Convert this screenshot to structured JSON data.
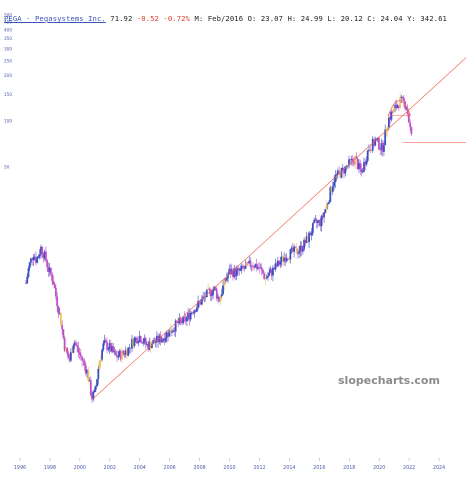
{
  "header": {
    "symbol_name": "PEGA - Pegasystems Inc.",
    "last": "71.92",
    "change": "-0.52",
    "change_pct": "-0.72%",
    "period": "M: Feb/2016",
    "open_label": "O:",
    "open": "23.07",
    "high_label": "H:",
    "high": "24.99",
    "low_label": "L:",
    "low": "20.12",
    "close_label": "C:",
    "close": "24.04",
    "volume_label": "Y:",
    "volume": "342.61"
  },
  "watermark": "slopecharts.com",
  "colors": {
    "up": "#3a4fc0",
    "down": "#c050c8",
    "highlight": "#f2c25a",
    "trendline": "#f06a55",
    "axis_text": "#4a5aa8"
  },
  "chart_data": {
    "type": "line",
    "title": "PEGA - Pegasystems Inc.",
    "y_scale": "log",
    "y_ticks": [
      "500",
      "450",
      "400",
      "350",
      "300",
      "250",
      "200",
      "150",
      "100",
      "50"
    ],
    "x_ticks": [
      "1996",
      "1998",
      "2000",
      "2002",
      "2004",
      "2006",
      "2008",
      "2010",
      "2012",
      "2014",
      "2016",
      "2018",
      "2020",
      "2022",
      "2024"
    ],
    "xlim": [
      1995.6,
      2025.8
    ],
    "ylim": [
      0.6,
      520
    ],
    "series": [
      {
        "values": [
          [
            1996.4,
            8.5
          ],
          [
            1996.6,
            11.0
          ],
          [
            1996.9,
            13.5
          ],
          [
            1997.1,
            12.0
          ],
          [
            1997.4,
            14.5
          ],
          [
            1997.7,
            12.5
          ],
          [
            1997.9,
            10.5
          ],
          [
            1998.2,
            9.0
          ],
          [
            1998.4,
            7.0
          ],
          [
            1998.7,
            5.0
          ],
          [
            1999.0,
            3.2
          ],
          [
            1999.3,
            2.6
          ],
          [
            1999.6,
            3.6
          ],
          [
            1999.9,
            3.0
          ],
          [
            2000.2,
            2.6
          ],
          [
            2000.5,
            2.2
          ],
          [
            2000.8,
            1.5
          ],
          [
            2001.0,
            1.6
          ],
          [
            2001.3,
            2.6
          ],
          [
            2001.6,
            3.4
          ],
          [
            2002.0,
            3.2
          ],
          [
            2002.4,
            2.8
          ],
          [
            2002.8,
            2.9
          ],
          [
            2003.2,
            3.1
          ],
          [
            2003.6,
            3.6
          ],
          [
            2004.0,
            3.8
          ],
          [
            2004.5,
            3.3
          ],
          [
            2005.0,
            3.5
          ],
          [
            2005.5,
            3.7
          ],
          [
            2006.0,
            4.1
          ],
          [
            2006.5,
            4.6
          ],
          [
            2007.0,
            4.8
          ],
          [
            2007.5,
            5.6
          ],
          [
            2008.0,
            6.3
          ],
          [
            2008.5,
            7.2
          ],
          [
            2009.0,
            7.8
          ],
          [
            2009.3,
            6.6
          ],
          [
            2009.7,
            8.8
          ],
          [
            2010.0,
            10.2
          ],
          [
            2010.5,
            10.0
          ],
          [
            2011.0,
            10.6
          ],
          [
            2011.5,
            11.5
          ],
          [
            2012.0,
            10.7
          ],
          [
            2012.4,
            9.2
          ],
          [
            2012.8,
            10.1
          ],
          [
            2013.2,
            11.2
          ],
          [
            2013.7,
            12.8
          ],
          [
            2014.2,
            13.6
          ],
          [
            2014.7,
            14.2
          ],
          [
            2015.2,
            16.5
          ],
          [
            2015.7,
            21.0
          ],
          [
            2016.1,
            21.5
          ],
          [
            2016.5,
            28.0
          ],
          [
            2017.0,
            42.0
          ],
          [
            2017.5,
            46.0
          ],
          [
            2018.0,
            52.0
          ],
          [
            2018.4,
            56.0
          ],
          [
            2018.8,
            45.0
          ],
          [
            2019.3,
            66.0
          ],
          [
            2019.8,
            74.0
          ],
          [
            2020.2,
            65.0
          ],
          [
            2020.6,
            102.0
          ],
          [
            2021.0,
            118.0
          ],
          [
            2021.4,
            135.0
          ],
          [
            2021.8,
            128.0
          ],
          [
            2022.0,
            98.0
          ],
          [
            2022.2,
            72.0
          ]
        ]
      }
    ],
    "support_line_value": 71.92
  }
}
